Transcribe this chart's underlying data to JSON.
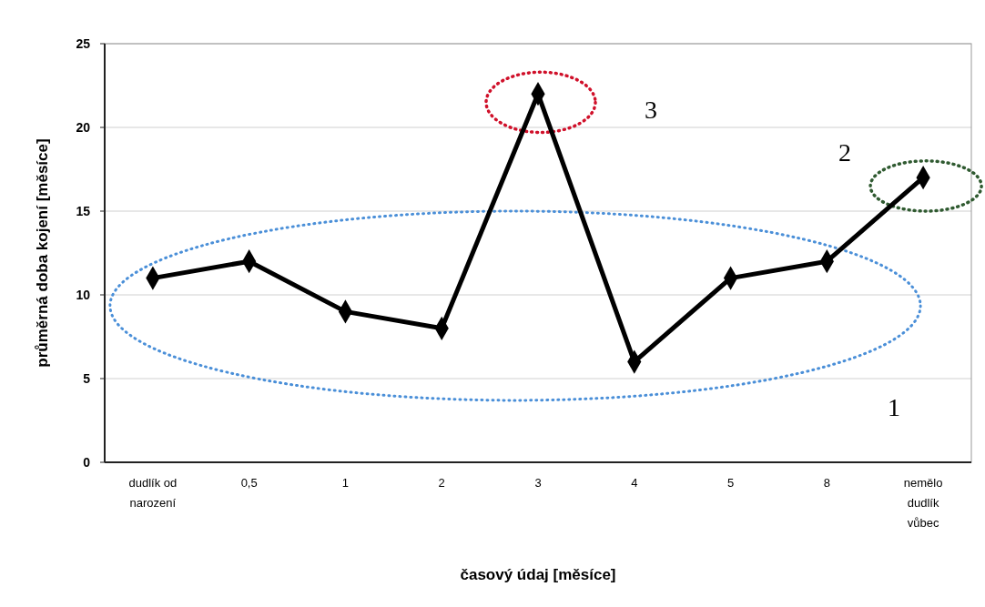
{
  "chart_data": {
    "type": "line",
    "xlabel": "časový údaj [měsíce]",
    "ylabel": "průměrná doba kojení [měsíce]",
    "categories": [
      "dudlík od narození",
      "0,5",
      "1",
      "2",
      "3",
      "4",
      "5",
      "8",
      "nemělo dudlík vůbec"
    ],
    "series": [
      {
        "color": "#000000",
        "values": [
          11,
          12,
          9,
          8,
          22,
          6,
          11,
          12,
          17
        ]
      }
    ],
    "ylim": [
      0,
      25
    ],
    "yticks": [
      0,
      5,
      10,
      15,
      20,
      25
    ],
    "grid": "y",
    "marker": "diamond",
    "line_style": "solid",
    "annotations": [
      "3",
      "2",
      "1"
    ]
  }
}
